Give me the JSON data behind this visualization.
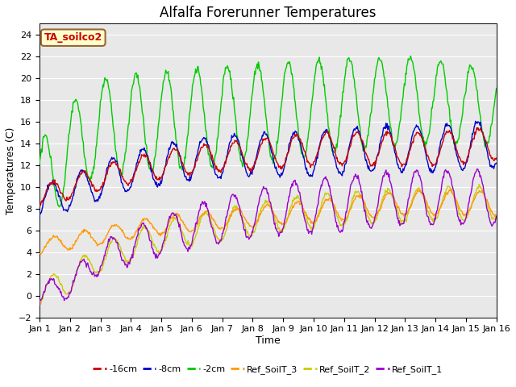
{
  "title": "Alfalfa Forerunner Temperatures",
  "xlabel": "Time",
  "ylabel": "Temperatures (C)",
  "ylim": [
    -2,
    25
  ],
  "xlim": [
    0,
    15
  ],
  "yticks": [
    -2,
    0,
    2,
    4,
    6,
    8,
    10,
    12,
    14,
    16,
    18,
    20,
    22,
    24
  ],
  "xtick_labels": [
    "Jan 1",
    "Jan 2",
    "Jan 3",
    "Jan 4",
    "Jan 5",
    "Jan 6",
    "Jan 7",
    "Jan 8",
    "Jan 9",
    "Jan 10",
    "Jan 11",
    "Jan 12",
    "Jan 13",
    "Jan 14",
    "Jan 15",
    "Jan 16"
  ],
  "annotation_label": "TA_soilco2",
  "annotation_text_color": "#cc0000",
  "annotation_face_color": "#ffffcc",
  "annotation_edge_color": "#996633",
  "series_colors": {
    "-16cm": "#cc0000",
    "-8cm": "#0000cc",
    "-2cm": "#00cc00",
    "Ref_SoilT_3": "#ff9900",
    "Ref_SoilT_2": "#cccc00",
    "Ref_SoilT_1": "#9900cc"
  },
  "background_color": "#e8e8e8",
  "grid_color": "#ffffff",
  "title_fontsize": 12,
  "axis_fontsize": 9,
  "tick_fontsize": 8
}
